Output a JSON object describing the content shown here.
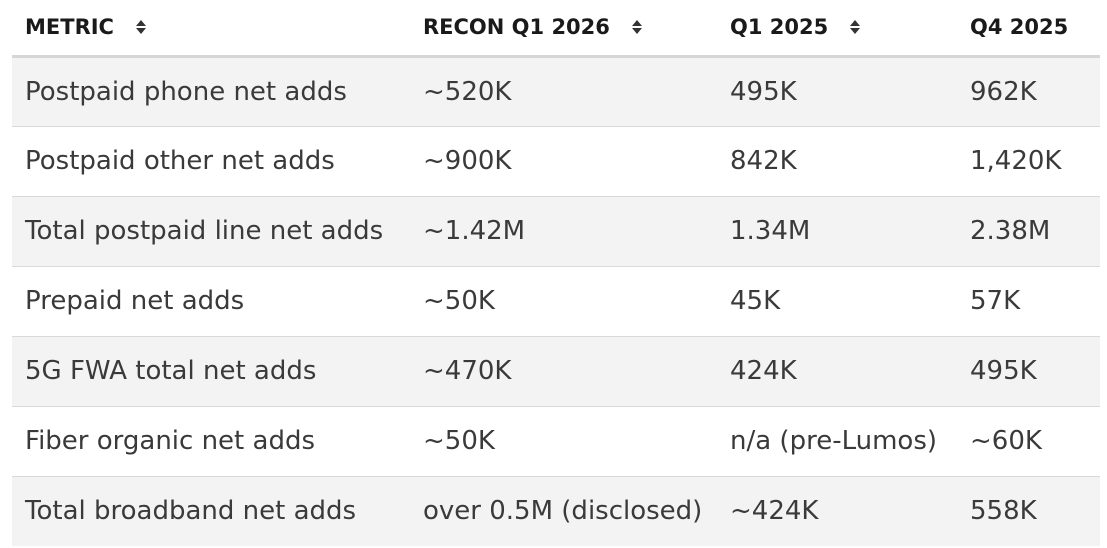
{
  "table": {
    "headers": [
      {
        "label": "METRIC",
        "sortable": true
      },
      {
        "label": "RECON Q1 2026",
        "sortable": true
      },
      {
        "label": "Q1 2025",
        "sortable": true
      },
      {
        "label": "Q4 2025",
        "sortable": false
      }
    ],
    "rows": [
      [
        "Postpaid phone net adds",
        "~520K",
        "495K",
        "962K"
      ],
      [
        "Postpaid other net adds",
        "~900K",
        "842K",
        "1,420K"
      ],
      [
        "Total postpaid line net adds",
        "~1.42M",
        "1.34M",
        "2.38M"
      ],
      [
        "Prepaid net adds",
        "~50K",
        "45K",
        "57K"
      ],
      [
        "5G FWA total net adds",
        "~470K",
        "424K",
        "495K"
      ],
      [
        "Fiber organic net adds",
        "~50K",
        "n/a (pre-Lumos)",
        "~60K"
      ],
      [
        "Total broadband net adds",
        "over 0.5M (disclosed)",
        "~424K",
        "558K"
      ]
    ]
  },
  "colors": {
    "stripe": "#f3f3f3",
    "header_rule": "#d6d6d6",
    "row_rule": "#d9d9d9",
    "text": "#3a3a3a",
    "header_text": "#1a1a1a"
  },
  "icons": {
    "sort": "sort-icon"
  }
}
